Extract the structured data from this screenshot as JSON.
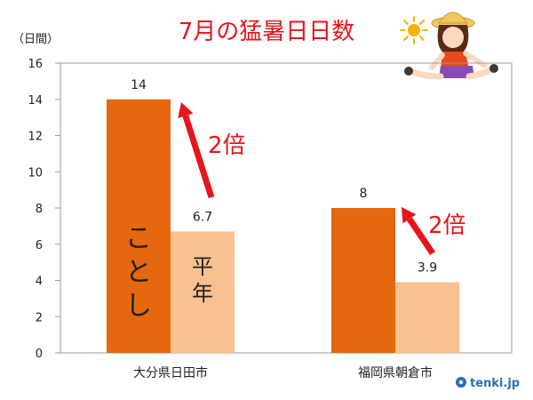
{
  "chart_data": {
    "type": "bar",
    "title": "7月の猛暑日日数",
    "ylabel": "（日間）",
    "ylim": [
      0,
      16
    ],
    "yticks": [
      0,
      2,
      4,
      6,
      8,
      10,
      12,
      14,
      16
    ],
    "grid": false,
    "legend": "none",
    "categories": [
      "大分県日田市",
      "福岡県朝倉市"
    ],
    "series": [
      {
        "name": "ことし",
        "values": [
          14,
          8
        ],
        "color": "#e5670e"
      },
      {
        "name": "平年",
        "values": [
          6.7,
          3.9
        ],
        "color": "#f9c190"
      }
    ],
    "data_labels": [
      "14",
      "6.7",
      "8",
      "3.9"
    ],
    "annotations": [
      {
        "text": "2倍",
        "category": 0,
        "color": "#e8141c"
      },
      {
        "text": "2倍",
        "category": 1,
        "color": "#e8141c"
      }
    ]
  },
  "logo": {
    "text": "tenki.jp",
    "color": "#2a6fb6"
  },
  "colors": {
    "axis": "#9a9a9a",
    "title": "#e8141c",
    "text": "#222222"
  },
  "icons": [
    "sun-icon",
    "girl-sitting-illustration"
  ]
}
